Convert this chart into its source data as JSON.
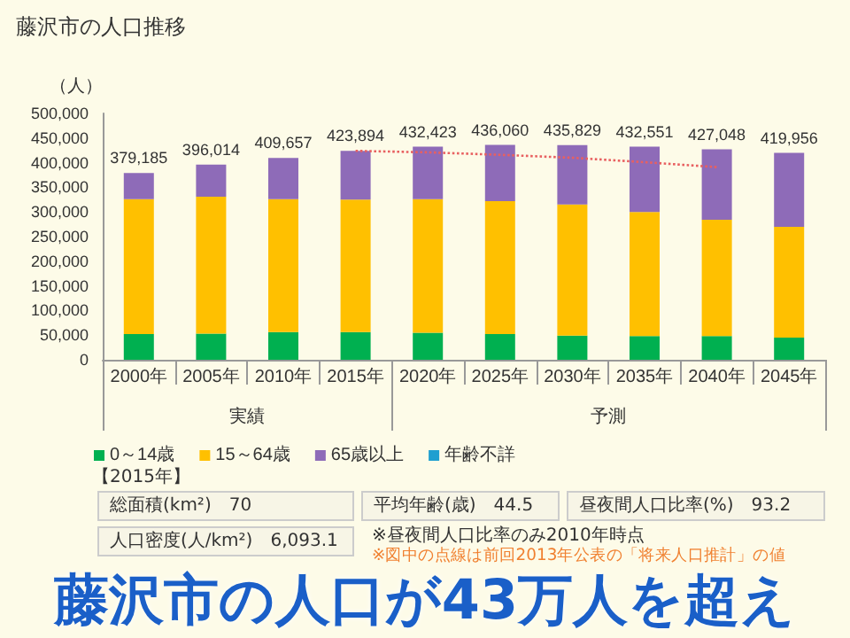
{
  "chart_data": {
    "type": "bar",
    "title": "藤沢市の人口推移",
    "subtitle": "藤沢市の人口が43万人を超え",
    "ylabel": "（人）",
    "categories": [
      "2000年",
      "2005年",
      "2010年",
      "2015年",
      "2020年",
      "2025年",
      "2030年",
      "2035年",
      "2040年",
      "2045年"
    ],
    "stacked": true,
    "series": [
      {
        "name": "0～14歳",
        "color": "#00b050",
        "values": [
          52000,
          53000,
          56000,
          56000,
          55000,
          52000,
          49000,
          48000,
          48000,
          45000
        ]
      },
      {
        "name": "15～64歳",
        "color": "#ffc000",
        "values": [
          274000,
          278000,
          270000,
          269000,
          271000,
          270000,
          266000,
          252000,
          236000,
          225000
        ]
      },
      {
        "name": "65歳以上",
        "color": "#8e6bb8",
        "values": [
          53185,
          65014,
          83657,
          98894,
          106423,
          114060,
          120829,
          132551,
          143048,
          149956
        ]
      },
      {
        "name": "年齢不詳",
        "color": "#1f9fd0",
        "values": [
          null,
          null,
          null,
          null,
          null,
          null,
          null,
          null,
          null,
          null
        ]
      },
      {
        "type": "line",
        "color": "#e86060",
        "line_style": "dotted",
        "marker": "none",
        "values": [
          null,
          null,
          null,
          424000,
          421000,
          416000,
          410000,
          401000,
          391000,
          null
        ]
      }
    ],
    "totals": [
      "379,185",
      "396,014",
      "409,657",
      "423,894",
      "432,423",
      "436,060",
      "435,829",
      "432,551",
      "427,048",
      "419,956"
    ],
    "ylim": [
      0,
      500000
    ],
    "yticks": [
      0,
      {
        "value": 50000,
        "label": "50,000"
      },
      {
        "value": 100000,
        "label": "100,000"
      },
      {
        "value": 150000,
        "label": "150,000"
      },
      {
        "value": 200000,
        "label": "200,000"
      },
      {
        "value": 250000,
        "label": "250,000"
      },
      {
        "value": 300000,
        "label": "300,000"
      },
      {
        "value": 350000,
        "label": "350,000"
      },
      {
        "value": 400000,
        "label": "400,000"
      },
      {
        "value": 450000,
        "label": "450,000"
      },
      {
        "value": 500000,
        "label": "500,000"
      }
    ],
    "grid": false,
    "legend": "bottom left",
    "annotations": [
      "実績",
      "予測",
      "【2015年】",
      "総面積(km²)　70",
      "平均年齢(歳)　44.5",
      "昼夜間人口比率(%)　93.2",
      "人口密度(人/km²)　6,093.1",
      "※昼夜間人口比率のみ2010年時点",
      "※図中の点線は前回2013年公表の「将来人口推計」の値"
    ]
  }
}
